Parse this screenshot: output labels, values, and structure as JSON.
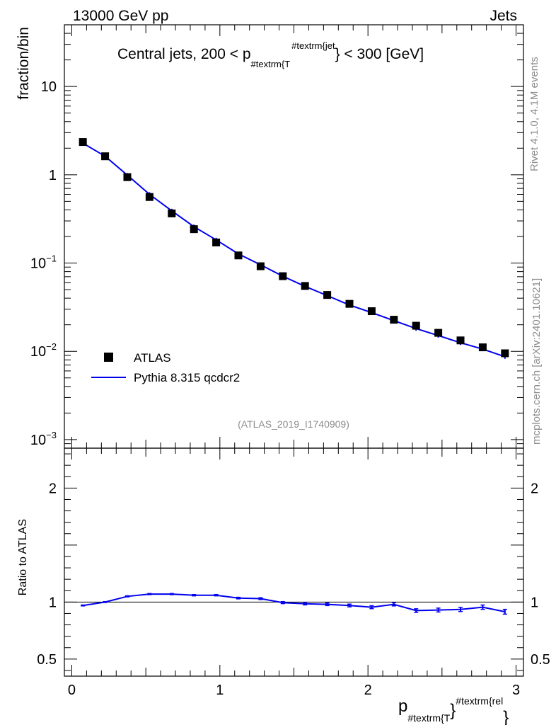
{
  "header": {
    "left": "13000 GeV pp",
    "right": "Jets"
  },
  "side_labels": {
    "rivet": "Rivet 4.1.0,  4.1M events",
    "mcplots": "mcplots.cern.ch [arXiv:2401.10621]"
  },
  "watermark": "(ATLAS_2019_I1740909)",
  "legend": {
    "data": "ATLAS",
    "mc": "Pythia 8.315 qcdcr2"
  },
  "colors": {
    "data": "#000000",
    "mc": "#0000ee"
  },
  "chart_data": [
    {
      "type": "scatter",
      "title": "Central jets, 200 < p",
      "title_sub": "#textrm{T",
      "title_sup": "#textrm{jet",
      "title_tail": "} < 300 [GeV]",
      "ylabel": "fraction/bin",
      "yscale": "log",
      "ylim": [
        0.0008,
        50
      ],
      "xlim": [
        -0.05,
        3.05
      ],
      "y_ticks": [
        {
          "v": 10,
          "mant": "10",
          "exp": ""
        },
        {
          "v": 1,
          "mant": "1",
          "exp": ""
        },
        {
          "v": 0.1,
          "mant": "10",
          "exp": "−1"
        },
        {
          "v": 0.01,
          "mant": "10",
          "exp": "−2"
        },
        {
          "v": 0.001,
          "mant": "10",
          "exp": "−3"
        }
      ],
      "series": [
        {
          "name": "ATLAS",
          "kind": "markers",
          "x": [
            0.075,
            0.225,
            0.375,
            0.525,
            0.675,
            0.825,
            0.975,
            1.125,
            1.275,
            1.425,
            1.575,
            1.725,
            1.875,
            2.025,
            2.175,
            2.325,
            2.475,
            2.625,
            2.775,
            2.925
          ],
          "y": [
            2.35,
            1.62,
            0.94,
            0.56,
            0.365,
            0.242,
            0.171,
            0.122,
            0.092,
            0.071,
            0.055,
            0.0435,
            0.0345,
            0.0285,
            0.0228,
            0.0195,
            0.0162,
            0.0133,
            0.0111,
            0.0095
          ]
        },
        {
          "name": "Pythia 8.315 qcdcr2",
          "kind": "line",
          "x": [
            0.075,
            0.225,
            0.375,
            0.525,
            0.675,
            0.825,
            0.975,
            1.125,
            1.275,
            1.425,
            1.575,
            1.725,
            1.875,
            2.025,
            2.175,
            2.325,
            2.475,
            2.625,
            2.775,
            2.925
          ],
          "y": [
            2.28,
            1.62,
            0.99,
            0.6,
            0.39,
            0.258,
            0.183,
            0.127,
            0.0955,
            0.071,
            0.0545,
            0.0428,
            0.0335,
            0.0274,
            0.0223,
            0.0181,
            0.0151,
            0.0125,
            0.0106,
            0.0087
          ]
        }
      ]
    },
    {
      "type": "line",
      "ylabel": "Ratio to ATLAS",
      "xlabel": "p",
      "xlabel_sub": "#textrm{T",
      "xlabel_sup": "#textrm{rel",
      "xlabel_close": "}",
      "xlim": [
        -0.05,
        3.05
      ],
      "ylim": [
        0.35,
        2.35
      ],
      "x_ticks": [
        {
          "v": 0,
          "label": "0"
        },
        {
          "v": 1,
          "label": "1"
        },
        {
          "v": 2,
          "label": "2"
        },
        {
          "v": 3,
          "label": "3"
        }
      ],
      "y_ticks": [
        {
          "v": 2,
          "label": "2"
        },
        {
          "v": 1,
          "label": "1"
        },
        {
          "v": 0.5,
          "label": "0.5"
        }
      ],
      "reference": 1,
      "series": [
        {
          "name": "Pythia 8.315 qcdcr2 / ATLAS",
          "x": [
            0.075,
            0.225,
            0.375,
            0.525,
            0.675,
            0.825,
            0.975,
            1.125,
            1.275,
            1.425,
            1.575,
            1.725,
            1.875,
            2.025,
            2.175,
            2.325,
            2.475,
            2.625,
            2.775,
            2.925
          ],
          "y": [
            0.97,
            1.0,
            1.05,
            1.07,
            1.07,
            1.06,
            1.06,
            1.035,
            1.03,
            0.995,
            0.985,
            0.98,
            0.97,
            0.955,
            0.98,
            0.925,
            0.93,
            0.935,
            0.955,
            0.915
          ],
          "err": [
            0.004,
            0.004,
            0.005,
            0.005,
            0.005,
            0.006,
            0.006,
            0.007,
            0.008,
            0.009,
            0.01,
            0.011,
            0.012,
            0.013,
            0.014,
            0.016,
            0.017,
            0.018,
            0.019,
            0.021
          ]
        }
      ]
    }
  ]
}
